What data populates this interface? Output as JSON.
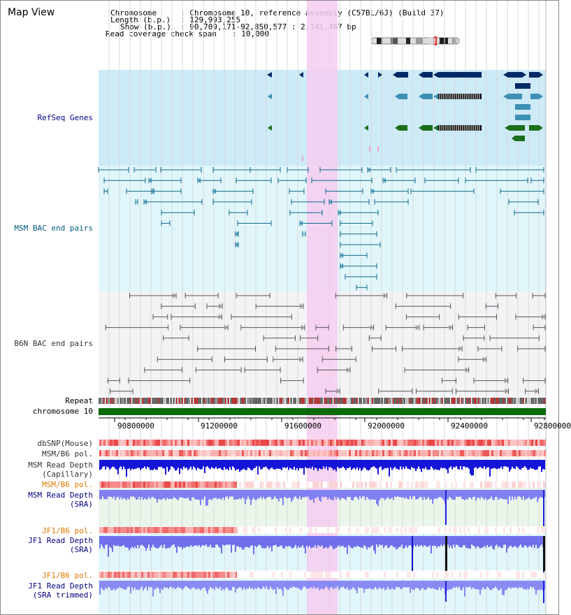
{
  "title": "Map View",
  "header": {
    "chromosome_label": "Chromosome",
    "chromosome_value": ": Chromosome 10, reference assembly (C57BL/6J) (Build 37)",
    "length_label": "Length (b.p.)",
    "length_value": ": 129,993,255",
    "show_label": "Show (b.p.)",
    "show_value": ": 90,709,171-92,850,577 : 2,141,407 bp",
    "coverage_label": "Read coverage check span",
    "coverage_value": ": 10,000"
  },
  "track_labels": {
    "refseq": "RefSeq Genes",
    "msm_bac": "MSM BAC end pairs",
    "b6n_bac": "B6N BAC end pairs",
    "repeat": "Repeat",
    "chromosome": "chromosome 10",
    "dbsnp": "dbSNP(Mouse)",
    "msm_b6_pol_1": "MSM/B6 pol.",
    "msm_read_depth_cap_1": "MSM Read Depth",
    "msm_read_depth_cap_2": "(Capillary)",
    "msm_b6_pol_2": "MSM/B6 pol.",
    "msm_read_depth_sra_1": "MSM Read Depth",
    "msm_read_depth_sra_2": "(SRA)",
    "jf1_b6_pol_1": "JF1/B6 pol.",
    "jf1_read_depth_sra_1": "JF1 Read Depth",
    "jf1_read_depth_sra_2": "(SRA)",
    "jf1_b6_pol_2": "JF1/B6 pol.",
    "jf1_read_depth_trim_1": "JF1 Read Depth",
    "jf1_read_depth_trim_2": "(SRA trimmed)"
  },
  "axis_ticks": [
    "90800000",
    "91200000",
    "91600000",
    "92000000",
    "92400000",
    "92800000"
  ],
  "colors": {
    "label_blue": "#00007f",
    "label_teal": "#005a7a",
    "label_gray": "#333333",
    "label_orange": "#e07a00",
    "highlight": "#f4ccf0",
    "refseq_bg": "#cdeaf7",
    "msm_bg": "#e0f6fb",
    "b6n_bg": "#f3f3f6",
    "gene_dark": "#002a66",
    "gene_light": "#3d8fb3",
    "gene_green": "#1b6e1b",
    "depth_blue": "#1010e0",
    "depth_light": "#7a7aff"
  }
}
